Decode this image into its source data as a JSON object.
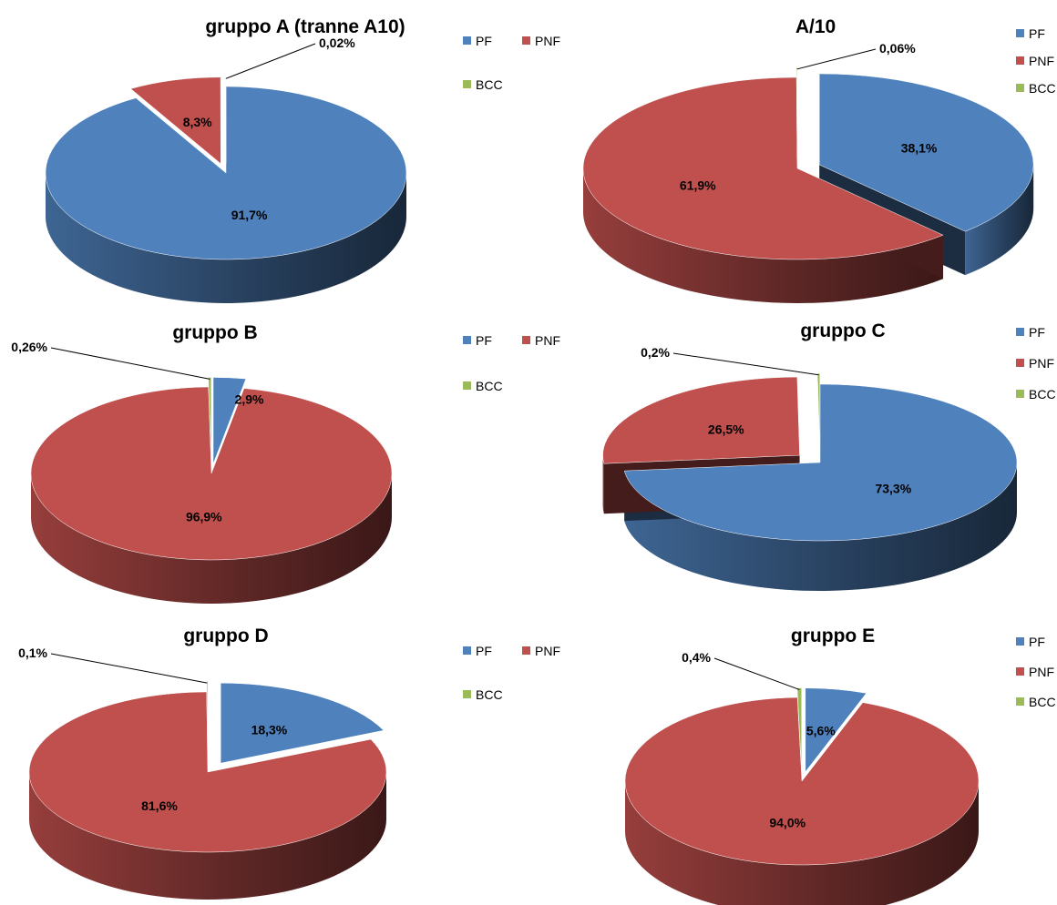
{
  "colors": {
    "PF": "#4F81BD",
    "PNF": "#C0504D",
    "BCC": "#9BBB59"
  },
  "chart_data": [
    {
      "type": "pie",
      "title": "gruppo A (tranne A10)",
      "categories": [
        "PF",
        "PNF",
        "BCC"
      ],
      "values": [
        91.7,
        8.3,
        0.02
      ],
      "labels": [
        "91,7%",
        "8,3%",
        "0,02%"
      ],
      "legend": {
        "position": "right",
        "entries": [
          "PF",
          "PNF",
          "BCC"
        ]
      },
      "exploded": [
        "PNF",
        "BCC"
      ]
    },
    {
      "type": "pie",
      "title": "A/10",
      "categories": [
        "PF",
        "PNF",
        "BCC"
      ],
      "values": [
        38.1,
        61.9,
        0.06
      ],
      "labels": [
        "38,1%",
        "61,9%",
        "0,06%"
      ],
      "legend": {
        "position": "right",
        "entries": [
          "PF",
          "PNF",
          "BCC"
        ]
      },
      "exploded": [
        "PF",
        "BCC"
      ]
    },
    {
      "type": "pie",
      "title": "gruppo B",
      "categories": [
        "PF",
        "PNF",
        "BCC"
      ],
      "values": [
        2.9,
        96.9,
        0.26
      ],
      "labels": [
        "2,9%",
        "96,9%",
        "0,26%"
      ],
      "legend": {
        "position": "right",
        "entries": [
          "PF",
          "PNF",
          "BCC"
        ]
      },
      "exploded": [
        "PF",
        "BCC"
      ]
    },
    {
      "type": "pie",
      "title": "gruppo C",
      "categories": [
        "PF",
        "PNF",
        "BCC"
      ],
      "values": [
        73.3,
        26.5,
        0.2
      ],
      "labels": [
        "73,3%",
        "26,5%",
        "0,2%"
      ],
      "legend": {
        "position": "right",
        "entries": [
          "PF",
          "PNF",
          "BCC"
        ]
      },
      "exploded": [
        "PNF",
        "BCC"
      ]
    },
    {
      "type": "pie",
      "title": "gruppo D",
      "categories": [
        "PF",
        "PNF",
        "BCC"
      ],
      "values": [
        18.3,
        81.6,
        0.1
      ],
      "labels": [
        "18,3%",
        "81,6%",
        "0,1%"
      ],
      "legend": {
        "position": "right",
        "entries": [
          "PF",
          "PNF",
          "BCC"
        ]
      },
      "exploded": [
        "PF",
        "BCC"
      ]
    },
    {
      "type": "pie",
      "title": "gruppo E",
      "categories": [
        "PF",
        "PNF",
        "BCC"
      ],
      "values": [
        5.6,
        94.0,
        0.4
      ],
      "labels": [
        "5,6%",
        "94,0%",
        "0,4%"
      ],
      "legend": {
        "position": "right",
        "entries": [
          "PF",
          "PNF",
          "BCC"
        ]
      },
      "exploded": [
        "PF",
        "BCC"
      ]
    }
  ]
}
